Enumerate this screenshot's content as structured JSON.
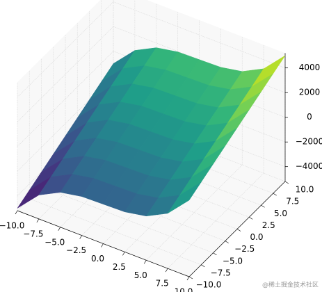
{
  "chart_data": {
    "type": "surface3d",
    "x": [
      -10,
      -7.5,
      -5,
      -2.5,
      0,
      2.5,
      5,
      7.5,
      10
    ],
    "y": [
      -10,
      -7.5,
      -5,
      -2.5,
      0,
      2.5,
      5,
      7.5,
      10
    ],
    "z": [
      [
        -5000,
        -3266,
        -2375,
        -2047,
        -2000,
        -1953,
        -1625,
        -734,
        1000
      ],
      [
        -4500,
        -2766,
        -1875,
        -1547,
        -1500,
        -1453,
        -1125,
        -234,
        1500
      ],
      [
        -4000,
        -2266,
        -1375,
        -1047,
        -1000,
        -953,
        -625,
        266,
        2000
      ],
      [
        -3500,
        -1766,
        -875,
        -547,
        -500,
        -453,
        -125,
        766,
        2500
      ],
      [
        -3000,
        -1266,
        -375,
        -47,
        0,
        47,
        375,
        1266,
        3000
      ],
      [
        -2500,
        -766,
        125,
        453,
        500,
        547,
        875,
        1766,
        3500
      ],
      [
        -2000,
        -266,
        625,
        953,
        1000,
        1047,
        1375,
        2266,
        4000
      ],
      [
        -1500,
        234,
        1125,
        1453,
        1500,
        1547,
        1875,
        2766,
        4500
      ],
      [
        -1000,
        734,
        1625,
        1953,
        2000,
        2047,
        2375,
        3266,
        5000
      ]
    ],
    "colormap": "viridis",
    "xlim": [
      -10,
      10
    ],
    "ylim": [
      -10,
      10
    ],
    "zlim": [
      -5200,
      5200
    ],
    "xticks": [
      {
        "value": -10,
        "label": "−10.0"
      },
      {
        "value": -7.5,
        "label": "−7.5"
      },
      {
        "value": -5,
        "label": "−5.0"
      },
      {
        "value": -2.5,
        "label": "−2.5"
      },
      {
        "value": 0,
        "label": "0.0"
      },
      {
        "value": 2.5,
        "label": "2.5"
      },
      {
        "value": 5,
        "label": "5.0"
      },
      {
        "value": 7.5,
        "label": "7.5"
      },
      {
        "value": 10,
        "label": "10.0"
      }
    ],
    "yticks": [
      {
        "value": -10,
        "label": "−10.0"
      },
      {
        "value": -7.5,
        "label": "−7.5"
      },
      {
        "value": -5,
        "label": "−5.0"
      },
      {
        "value": -2.5,
        "label": "−2.5"
      },
      {
        "value": 0,
        "label": "0.0"
      },
      {
        "value": 2.5,
        "label": "2.5"
      },
      {
        "value": 5,
        "label": "5.0"
      },
      {
        "value": 7.5,
        "label": "7.5"
      },
      {
        "value": 10,
        "label": "10.0"
      }
    ],
    "zticks": [
      {
        "value": -4000,
        "label": "−4000"
      },
      {
        "value": -2000,
        "label": "−2000"
      },
      0,
      2000,
      4000
    ],
    "grid": true,
    "watermark": "@稀土掘金技术社区"
  }
}
